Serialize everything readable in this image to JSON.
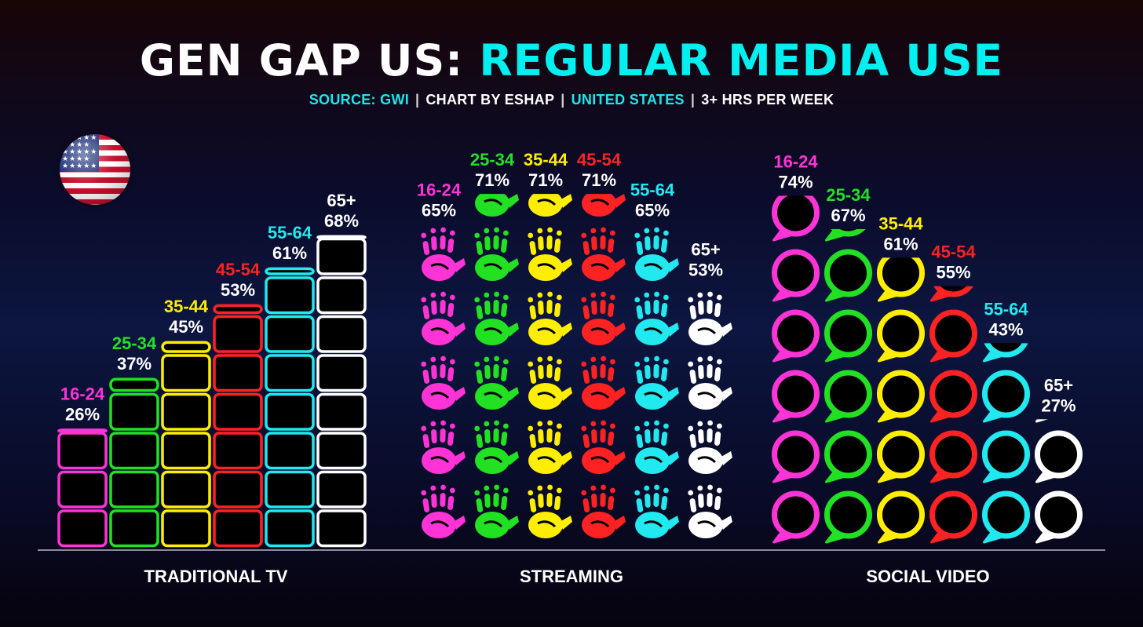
{
  "header": {
    "title_part1": "GEN GAP US:",
    "title_part2": "REGULAR MEDIA USE",
    "sub_source": "SOURCE: GWI",
    "sub_chartby": "CHART BY ESHAP",
    "sub_country": "UNITED STATES",
    "sub_measure": "3+ HRS PER WEEK",
    "separator": "|"
  },
  "icons": {
    "flag": "us-flag-icon",
    "tv": "tv-screen-icon",
    "streaming": "handprint-icon",
    "social": "speech-bubble-icon"
  },
  "colors": {
    "title_accent": "#00f0f0",
    "16-24": "#ff33d6",
    "25-34": "#22e022",
    "35-44": "#ffee00",
    "45-54": "#ff2222",
    "55-64": "#22e8ef",
    "65+": "#ffffff"
  },
  "chart_data": [
    {
      "type": "bar",
      "title": "TRADITIONAL TV",
      "categories": [
        "16-24",
        "25-34",
        "35-44",
        "45-54",
        "55-64",
        "65+"
      ],
      "values": [
        26,
        37,
        45,
        53,
        61,
        68
      ],
      "labels": [
        "26%",
        "37%",
        "45%",
        "53%",
        "61%",
        "68%"
      ],
      "unit": "%"
    },
    {
      "type": "bar",
      "title": "STREAMING",
      "categories": [
        "16-24",
        "25-34",
        "35-44",
        "45-54",
        "55-64",
        "65+"
      ],
      "values": [
        65,
        71,
        71,
        71,
        65,
        53
      ],
      "labels": [
        "65%",
        "71%",
        "71%",
        "71%",
        "65%",
        "53%"
      ],
      "unit": "%"
    },
    {
      "type": "bar",
      "title": "SOCIAL VIDEO",
      "categories": [
        "16-24",
        "25-34",
        "35-44",
        "45-54",
        "55-64",
        "65+"
      ],
      "values": [
        74,
        67,
        61,
        55,
        43,
        27
      ],
      "labels": [
        "74%",
        "67%",
        "61%",
        "55%",
        "43%",
        "27%"
      ],
      "unit": "%"
    }
  ]
}
